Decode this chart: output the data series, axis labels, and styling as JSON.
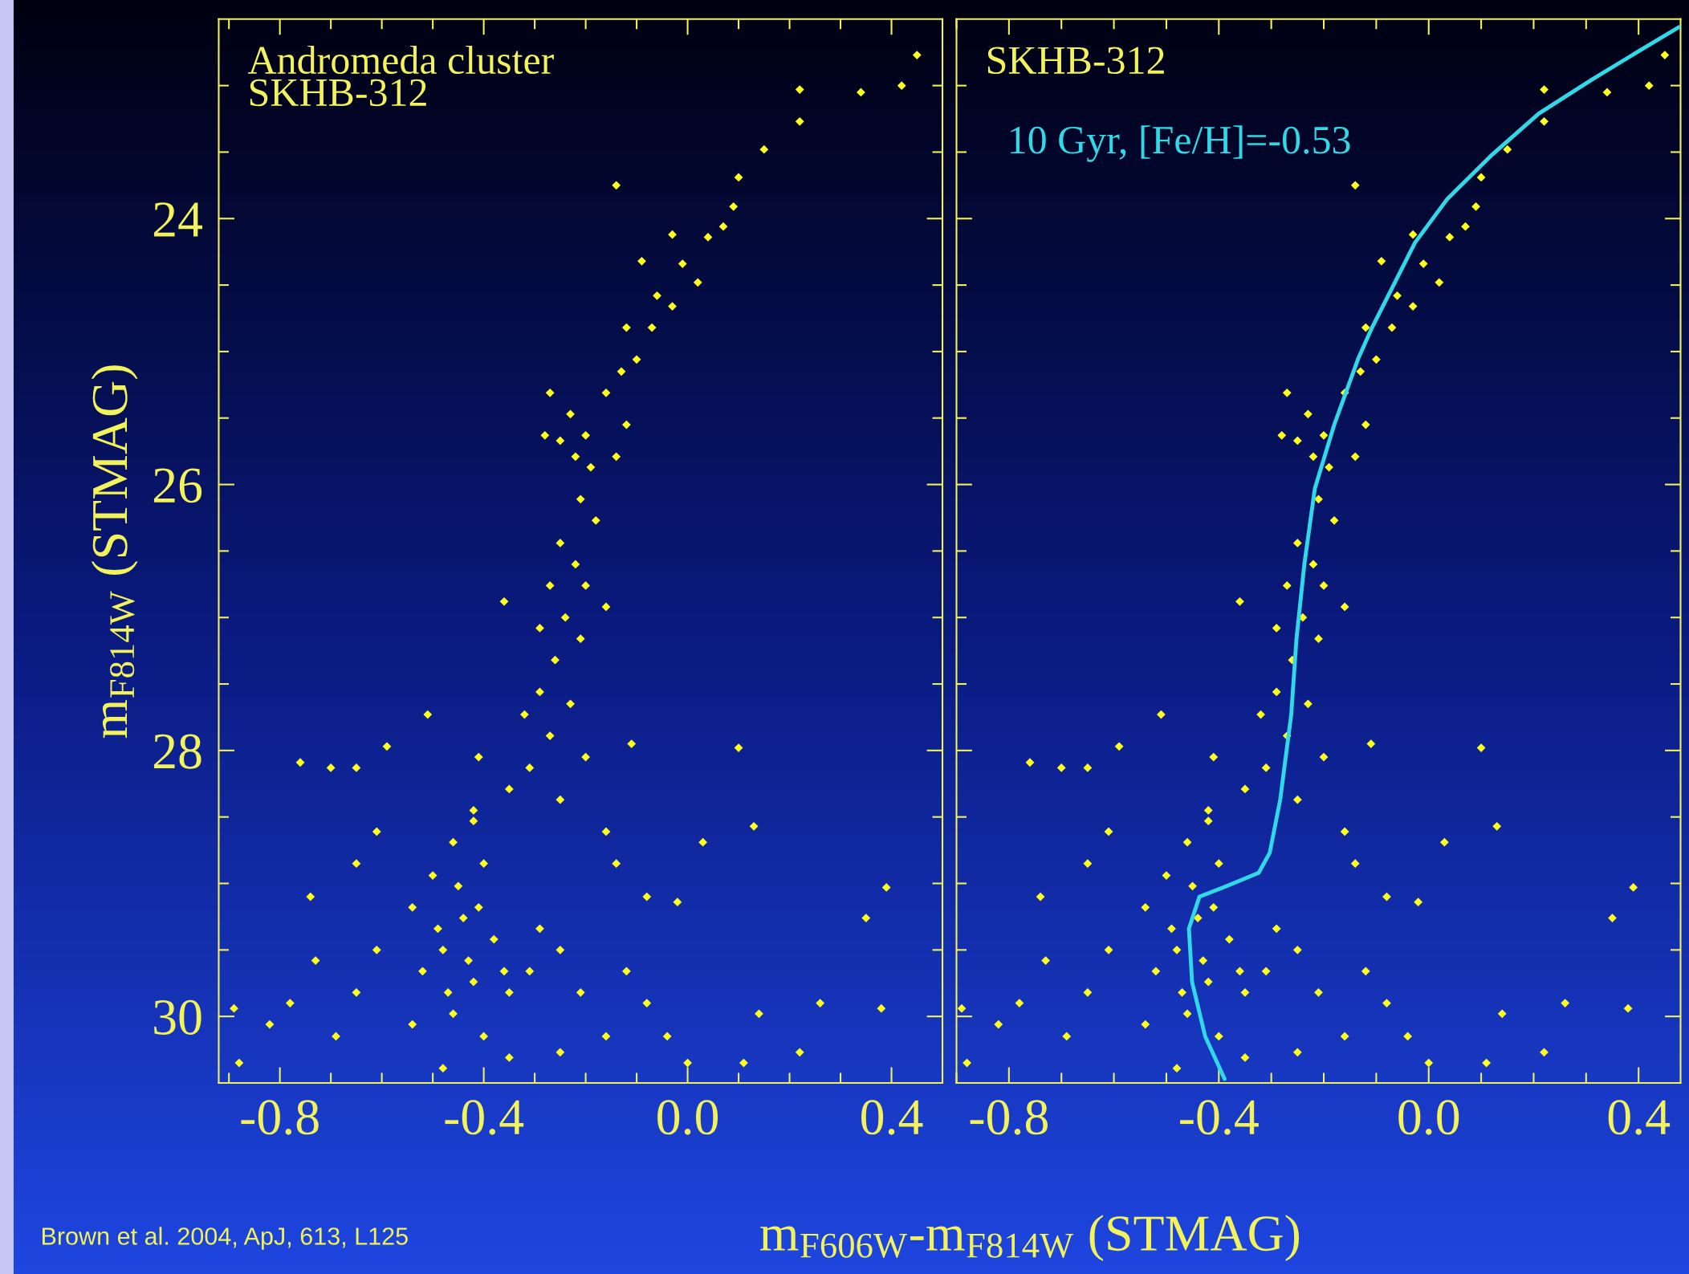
{
  "chart_data": [
    {
      "type": "scatter",
      "xlabel": "m$_{F606W}$-m$_{F814W}$ (STMAG)",
      "ylabel": "m$_{F814W}$ (STMAG)",
      "annotations": [
        "Andromeda cluster\nSKHB-312",
        "Brown et al. 2004, ApJ, 613, L125"
      ],
      "marker": "diamond",
      "xlim": [
        -0.92,
        0.5
      ],
      "ylim": [
        30.5,
        22.5
      ],
      "xticks": [
        {
          "value": -0.9,
          "label": null
        },
        {
          "value": -0.8,
          "label": "-0.8"
        },
        {
          "value": -0.7,
          "label": null
        },
        {
          "value": -0.6,
          "label": null
        },
        {
          "value": -0.5,
          "label": null
        },
        {
          "value": -0.4,
          "label": "-0.4"
        },
        {
          "value": -0.3,
          "label": null
        },
        {
          "value": -0.2,
          "label": null
        },
        {
          "value": -0.1,
          "label": null
        },
        {
          "value": 0.0,
          "label": "0.0"
        },
        {
          "value": 0.1,
          "label": null
        },
        {
          "value": 0.2,
          "label": null
        },
        {
          "value": 0.3,
          "label": null
        },
        {
          "value": 0.4,
          "label": "0.4"
        }
      ],
      "yticks": [
        {
          "value": 23,
          "label": null
        },
        {
          "value": 23.5,
          "label": null
        },
        24,
        {
          "value": 24.5,
          "label": null
        },
        {
          "value": 25,
          "label": null
        },
        {
          "value": 25.5,
          "label": null
        },
        26,
        {
          "value": 26.5,
          "label": null
        },
        {
          "value": 27,
          "label": null
        },
        {
          "value": 27.5,
          "label": null
        },
        28,
        {
          "value": 28.5,
          "label": null
        },
        {
          "value": 29,
          "label": null
        },
        {
          "value": 29.5,
          "label": null
        },
        30
      ],
      "series": [
        {
          "color": "#ffff1e",
          "x": [
            0.45,
            0.42,
            0.34,
            0.22,
            0.22,
            0.15,
            0.1,
            0.09,
            0.07,
            0.04,
            -0.03,
            -0.01,
            0.02,
            -0.09,
            -0.14,
            -0.06,
            -0.03,
            -0.07,
            -0.12,
            -0.1,
            -0.13,
            -0.27,
            -0.23,
            -0.2,
            -0.25,
            -0.22,
            -0.19,
            -0.28,
            -0.16,
            -0.12,
            -0.14,
            -0.21,
            -0.18,
            -0.25,
            -0.22,
            -0.2,
            -0.27,
            -0.16,
            -0.24,
            -0.29,
            -0.36,
            -0.21,
            -0.26,
            -0.29,
            -0.23,
            -0.32,
            -0.27,
            -0.2,
            -0.11,
            -0.31,
            -0.35,
            -0.25,
            -0.41,
            -0.51,
            -0.59,
            -0.65,
            -0.76,
            -0.7,
            -0.42,
            -0.46,
            -0.4,
            -0.5,
            -0.54,
            -0.44,
            -0.38,
            -0.48,
            -0.52,
            -0.42,
            -0.35,
            -0.46,
            -0.54,
            -0.4,
            -0.31,
            -0.29,
            -0.61,
            -0.65,
            -0.69,
            -0.73,
            -0.78,
            -0.82,
            -0.88,
            -0.89,
            -0.74,
            -0.61,
            -0.65,
            -0.25,
            -0.21,
            -0.16,
            -0.12,
            -0.08,
            -0.04,
            -0.14,
            -0.16,
            -0.08,
            -0.02,
            0.03,
            0.13,
            0.1,
            0.14,
            0.22,
            0.11,
            0.0,
            0.38,
            0.39,
            0.35,
            0.26,
            -0.35,
            -0.25,
            -0.48,
            -0.42,
            -0.45,
            -0.41,
            -0.49,
            -0.43,
            -0.36,
            -0.47
          ],
          "values": [
            22.77,
            23.0,
            23.05,
            23.03,
            23.27,
            23.48,
            23.69,
            23.91,
            24.06,
            24.14,
            24.12,
            24.34,
            24.48,
            24.32,
            23.75,
            24.58,
            24.66,
            24.82,
            24.82,
            25.06,
            25.15,
            25.31,
            25.47,
            25.63,
            25.67,
            25.79,
            25.87,
            25.63,
            25.31,
            25.55,
            25.79,
            26.11,
            26.27,
            26.44,
            26.6,
            26.76,
            26.76,
            26.92,
            27.0,
            27.08,
            26.88,
            27.16,
            27.32,
            27.56,
            27.65,
            27.73,
            27.89,
            28.05,
            27.95,
            28.13,
            28.29,
            28.37,
            28.05,
            27.73,
            27.97,
            28.13,
            28.09,
            28.13,
            28.45,
            28.69,
            28.85,
            28.94,
            29.18,
            29.26,
            29.42,
            29.5,
            29.66,
            29.74,
            29.82,
            29.98,
            30.06,
            30.15,
            29.66,
            29.34,
            29.5,
            29.82,
            30.15,
            29.58,
            29.9,
            30.06,
            30.35,
            29.94,
            29.1,
            28.61,
            28.85,
            29.5,
            29.82,
            30.15,
            29.66,
            29.9,
            30.15,
            28.85,
            28.61,
            29.1,
            29.14,
            28.69,
            28.57,
            27.98,
            29.98,
            30.27,
            30.35,
            30.35,
            29.94,
            29.03,
            29.26,
            29.9,
            30.31,
            30.27,
            30.39,
            28.53,
            29.02,
            29.18,
            29.34,
            29.58,
            29.66,
            29.82
          ]
        }
      ]
    },
    {
      "type": "scatter",
      "annotations": [
        "SKHB-312"
      ],
      "marker": "diamond",
      "tick_labels": "x",
      "xlim": [
        -0.9,
        0.48
      ],
      "ylim": [
        30.5,
        22.5
      ],
      "xticks": [
        {
          "value": -0.9,
          "label": null
        },
        {
          "value": -0.8,
          "label": "-0.8"
        },
        {
          "value": -0.7,
          "label": null
        },
        {
          "value": -0.6,
          "label": null
        },
        {
          "value": -0.5,
          "label": null
        },
        {
          "value": -0.4,
          "label": "-0.4"
        },
        {
          "value": -0.3,
          "label": null
        },
        {
          "value": -0.2,
          "label": null
        },
        {
          "value": -0.1,
          "label": null
        },
        {
          "value": 0.0,
          "label": "0.0"
        },
        {
          "value": 0.1,
          "label": null
        },
        {
          "value": 0.2,
          "label": null
        },
        {
          "value": 0.3,
          "label": null
        },
        {
          "value": 0.4,
          "label": "0.4"
        }
      ],
      "yticks": [
        {
          "value": 23,
          "label": null
        },
        {
          "value": 23.5,
          "label": null
        },
        24,
        {
          "value": 24.5,
          "label": null
        },
        {
          "value": 25,
          "label": null
        },
        {
          "value": 25.5,
          "label": null
        },
        26,
        {
          "value": 26.5,
          "label": null
        },
        {
          "value": 27,
          "label": null
        },
        {
          "value": 27.5,
          "label": null
        },
        28,
        {
          "value": 28.5,
          "label": null
        },
        {
          "value": 29,
          "label": null
        },
        {
          "value": 29.5,
          "label": null
        },
        30
      ],
      "series": [
        {
          "color": "#ffff1e",
          "x": [
            0.45,
            0.42,
            0.34,
            0.22,
            0.22,
            0.15,
            0.1,
            0.09,
            0.07,
            0.04,
            -0.03,
            -0.01,
            0.02,
            -0.09,
            -0.14,
            -0.06,
            -0.03,
            -0.07,
            -0.12,
            -0.1,
            -0.13,
            -0.27,
            -0.23,
            -0.2,
            -0.25,
            -0.22,
            -0.19,
            -0.28,
            -0.16,
            -0.12,
            -0.14,
            -0.21,
            -0.18,
            -0.25,
            -0.22,
            -0.2,
            -0.27,
            -0.16,
            -0.24,
            -0.29,
            -0.36,
            -0.21,
            -0.26,
            -0.29,
            -0.23,
            -0.32,
            -0.27,
            -0.2,
            -0.11,
            -0.31,
            -0.35,
            -0.25,
            -0.41,
            -0.51,
            -0.59,
            -0.65,
            -0.76,
            -0.7,
            -0.42,
            -0.46,
            -0.4,
            -0.5,
            -0.54,
            -0.44,
            -0.38,
            -0.48,
            -0.52,
            -0.42,
            -0.35,
            -0.46,
            -0.54,
            -0.4,
            -0.31,
            -0.29,
            -0.61,
            -0.65,
            -0.69,
            -0.73,
            -0.78,
            -0.82,
            -0.88,
            -0.89,
            -0.74,
            -0.61,
            -0.65,
            -0.25,
            -0.21,
            -0.16,
            -0.12,
            -0.08,
            -0.04,
            -0.14,
            -0.16,
            -0.08,
            -0.02,
            0.03,
            0.13,
            0.1,
            0.14,
            0.22,
            0.11,
            0.0,
            0.38,
            0.39,
            0.35,
            0.26,
            -0.35,
            -0.25,
            -0.48,
            -0.42,
            -0.45,
            -0.41,
            -0.49,
            -0.43,
            -0.36,
            -0.47
          ],
          "values": [
            22.77,
            23.0,
            23.05,
            23.03,
            23.27,
            23.48,
            23.69,
            23.91,
            24.06,
            24.14,
            24.12,
            24.34,
            24.48,
            24.32,
            23.75,
            24.58,
            24.66,
            24.82,
            24.82,
            25.06,
            25.15,
            25.31,
            25.47,
            25.63,
            25.67,
            25.79,
            25.87,
            25.63,
            25.31,
            25.55,
            25.79,
            26.11,
            26.27,
            26.44,
            26.6,
            26.76,
            26.76,
            26.92,
            27.0,
            27.08,
            26.88,
            27.16,
            27.32,
            27.56,
            27.65,
            27.73,
            27.89,
            28.05,
            27.95,
            28.13,
            28.29,
            28.37,
            28.05,
            27.73,
            27.97,
            28.13,
            28.09,
            28.13,
            28.45,
            28.69,
            28.85,
            28.94,
            29.18,
            29.26,
            29.42,
            29.5,
            29.66,
            29.74,
            29.82,
            29.98,
            30.06,
            30.15,
            29.66,
            29.34,
            29.5,
            29.82,
            30.15,
            29.58,
            29.9,
            30.06,
            30.35,
            29.94,
            29.1,
            28.61,
            28.85,
            29.5,
            29.82,
            30.15,
            29.66,
            29.9,
            30.15,
            28.85,
            28.61,
            29.1,
            29.14,
            28.69,
            28.57,
            27.98,
            29.98,
            30.27,
            30.35,
            30.35,
            29.94,
            29.03,
            29.26,
            29.9,
            30.31,
            30.27,
            30.39,
            28.53,
            29.02,
            29.18,
            29.34,
            29.58,
            29.66,
            29.82
          ]
        },
        {
          "type": "line",
          "name": "10 Gyr, [Fe/H]=-0.53",
          "color": "#30d8e8",
          "line_style": "solid",
          "marker": "none",
          "x": [
            -0.389,
            -0.426,
            -0.451,
            -0.457,
            -0.437,
            -0.385,
            -0.324,
            -0.303,
            -0.283,
            -0.262,
            -0.252,
            -0.237,
            -0.217,
            -0.18,
            -0.135,
            -0.108,
            -0.067,
            -0.026,
            0.036,
            0.118,
            0.21,
            0.313,
            0.405,
            0.477
          ],
          "values": [
            30.47,
            30.15,
            29.74,
            29.34,
            29.1,
            29.02,
            28.92,
            28.77,
            28.37,
            27.73,
            27.16,
            26.6,
            26.03,
            25.55,
            25.06,
            24.82,
            24.5,
            24.18,
            23.85,
            23.53,
            23.21,
            22.95,
            22.73,
            22.56
          ]
        }
      ]
    }
  ]
}
